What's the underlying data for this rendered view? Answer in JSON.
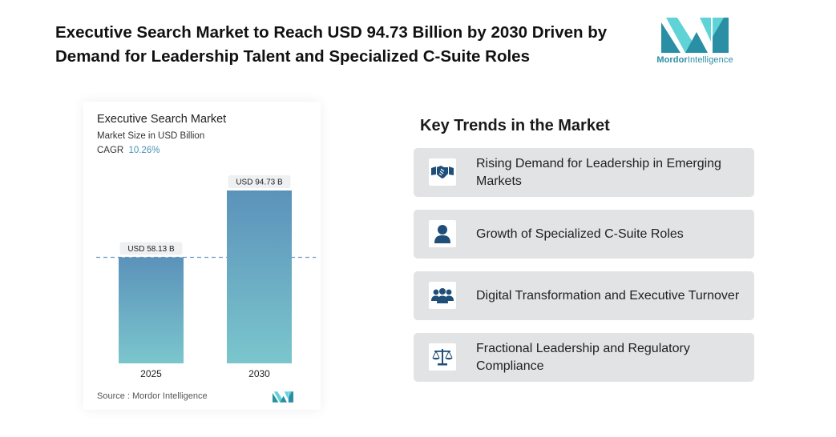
{
  "headline": "Executive Search Market to Reach USD 94.73 Billion by 2030 Driven by Demand for Leadership Talent and Specialized C-Suite Roles",
  "brand": {
    "name_part1": "Mordor",
    "name_part2": "Intelligence",
    "colors": {
      "primary": "#2a8fa4",
      "light": "#5fd3d6"
    }
  },
  "chart_data": {
    "type": "bar",
    "title": "Executive Search Market",
    "subtitle": "Market Size in USD Billion",
    "cagr_label": "CAGR",
    "cagr_value": "10.26%",
    "categories": [
      "2025",
      "2030"
    ],
    "values": [
      58.13,
      94.73
    ],
    "data_labels": [
      "USD 58.13 B",
      "USD 94.73 B"
    ],
    "ylim": [
      0,
      100
    ],
    "grid": false,
    "reference_line": {
      "value": 58.13,
      "style": "dashed"
    },
    "colors": {
      "bar_top": "#5b92ba",
      "bar_bottom": "#7bc6cd",
      "reference_line": "#6a98c0"
    },
    "source": "Source : Mordor Intelligence"
  },
  "trends": {
    "title": "Key Trends in the Market",
    "items": [
      {
        "label": "Rising Demand for Leadership in Emerging Markets",
        "icon": "handshake-icon"
      },
      {
        "label": "Growth of Specialized C-Suite Roles",
        "icon": "user-icon"
      },
      {
        "label": "Digital Transformation and Executive Turnover",
        "icon": "team-icon"
      },
      {
        "label": "Fractional Leadership and Regulatory Compliance",
        "icon": "scales-icon"
      }
    ],
    "icon_color": "#1f4e79"
  }
}
